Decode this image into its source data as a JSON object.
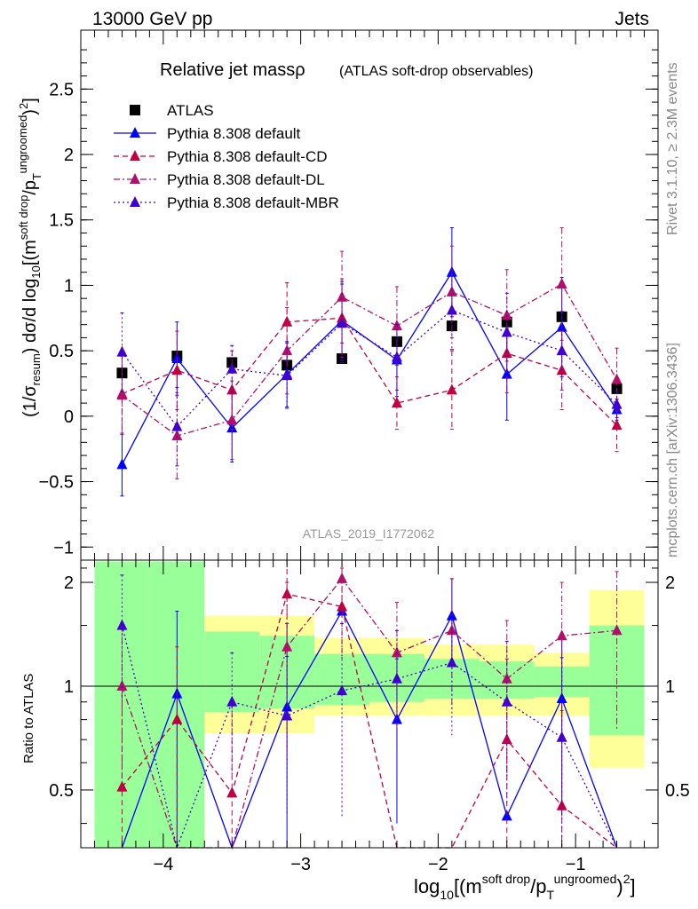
{
  "header": {
    "left": "13000 GeV pp",
    "right": "Jets"
  },
  "side": {
    "rivet": "Rivet 3.1.10, ≥ 2.3M events",
    "mcplots": "mcplots.cern.ch [arXiv:1306.3436]"
  },
  "chart_data": {
    "type": "line",
    "title_main": "Relative jet massρ",
    "title_sub": "(ATLAS soft-drop observables)",
    "watermark": "ATLAS_2019_I1772062",
    "xlabel": "log10[(m^soft drop/pT^ungroomed)^2]",
    "ylabel": "(1/σresum) dσ/d log10[(m^soft drop/pT^ungroomed)^2]",
    "ratio_ylabel": "Ratio to ATLAS",
    "xlim": [
      -4.6,
      -0.4
    ],
    "ylim": [
      -1.1,
      2.95
    ],
    "ratio_ylim": [
      0.34,
      2.32
    ],
    "x_ticks": [
      -4,
      -3,
      -2,
      -1
    ],
    "x_tick_labels": [
      "−4",
      "−3",
      "−2",
      "−1"
    ],
    "y_ticks": [
      -1,
      -0.5,
      0,
      0.5,
      1,
      1.5,
      2,
      2.5
    ],
    "y_tick_labels": [
      "−1",
      "−0.5",
      "0",
      "0.5",
      "1",
      "1.5",
      "2",
      "2.5"
    ],
    "ratio_ticks": [
      0.5,
      1,
      2
    ],
    "ratio_tick_labels": [
      "0.5",
      "1",
      "2"
    ],
    "bins": [
      -4.3,
      -3.9,
      -3.5,
      -3.1,
      -2.7,
      -2.3,
      -1.9,
      -1.5,
      -1.1,
      -0.7
    ],
    "bin_edges": [
      -4.5,
      -4.1,
      -3.7,
      -3.3,
      -2.9,
      -2.5,
      -2.1,
      -1.7,
      -1.3,
      -0.9,
      -0.5
    ],
    "band_yellow": [
      [
        0.3,
        2.3
      ],
      [
        0.3,
        2.1
      ],
      [
        0.73,
        1.6
      ],
      [
        0.73,
        1.6
      ],
      [
        0.82,
        1.38
      ],
      [
        0.82,
        1.38
      ],
      [
        0.82,
        1.32
      ],
      [
        0.82,
        1.32
      ],
      [
        0.82,
        1.25
      ],
      [
        0.58,
        1.9
      ]
    ],
    "band_green": [
      [
        0.3,
        2.3
      ],
      [
        0.3,
        2.3
      ],
      [
        0.84,
        1.44
      ],
      [
        0.86,
        1.4
      ],
      [
        0.88,
        1.24
      ],
      [
        0.9,
        1.24
      ],
      [
        0.92,
        1.2
      ],
      [
        0.92,
        1.18
      ],
      [
        0.93,
        1.14
      ],
      [
        0.72,
        1.5
      ]
    ],
    "series": [
      {
        "name": "ATLAS",
        "color": "#000000",
        "style": "marker-square",
        "values": [
          0.33,
          0.46,
          0.41,
          0.39,
          0.44,
          0.57,
          0.69,
          0.72,
          0.76,
          0.21
        ],
        "errors": [
          0.03,
          0.03,
          0.03,
          0.03,
          0.03,
          0.03,
          0.03,
          0.03,
          0.03,
          0.03
        ]
      },
      {
        "name": "Pythia 8.308 default",
        "color": "#0000ff",
        "dash": "",
        "values": [
          -0.37,
          0.44,
          -0.09,
          0.32,
          0.73,
          0.43,
          1.1,
          0.32,
          0.68,
          0.05
        ],
        "errors": [
          0.24,
          0.28,
          0.26,
          0.25,
          0.3,
          0.28,
          0.34,
          0.35,
          0.38,
          0.08
        ],
        "ratio": [
          0.2,
          0.95,
          0.2,
          0.87,
          1.65,
          0.8,
          1.6,
          0.42,
          0.92,
          0.25
        ],
        "ratio_errors": [
          0.0,
          0.7,
          0.0,
          0.65,
          0.0,
          0.4,
          0.45,
          0.0,
          0.5,
          0.0
        ]
      },
      {
        "name": "Pythia 8.308 default-CD",
        "color": "#c00040",
        "dash": "6,4",
        "values": [
          0.17,
          0.35,
          0.2,
          0.72,
          0.75,
          0.1,
          0.2,
          0.48,
          0.35,
          -0.07
        ],
        "errors": [
          0.3,
          0.3,
          0.3,
          0.3,
          0.3,
          0.2,
          0.3,
          0.3,
          0.3,
          0.2
        ],
        "ratio": [
          0.51,
          0.8,
          0.49,
          1.85,
          1.7,
          0.2,
          0.28,
          0.7,
          0.45,
          0.2
        ],
        "ratio_errors": [
          0.5,
          0.5,
          0.4,
          0.6,
          0.5,
          0.0,
          0.0,
          0.5,
          0.4,
          0.0
        ]
      },
      {
        "name": "Pythia 8.308 default-DL",
        "color": "#b0106a",
        "dash": "7,3,2,3",
        "values": [
          0.16,
          -0.15,
          -0.03,
          0.5,
          0.91,
          0.69,
          0.95,
          0.77,
          1.01,
          0.28
        ],
        "errors": [
          0.3,
          0.33,
          0.3,
          0.33,
          0.35,
          0.3,
          0.35,
          0.35,
          0.43,
          0.24
        ],
        "ratio": [
          1.0,
          0.25,
          0.2,
          1.3,
          2.05,
          1.25,
          1.45,
          1.05,
          1.4,
          1.45
        ],
        "ratio_errors": [
          0.5,
          0.0,
          0.0,
          0.7,
          0.3,
          0.5,
          0.6,
          0.5,
          0.6,
          0.7
        ]
      },
      {
        "name": "Pythia 8.308 default-MBR",
        "color": "#4000d0",
        "dash": "2,3",
        "values": [
          0.49,
          -0.08,
          0.36,
          0.31,
          0.71,
          0.45,
          0.81,
          0.64,
          0.5,
          0.09
        ],
        "errors": [
          0.3,
          0.3,
          0.18,
          0.25,
          0.3,
          0.25,
          0.3,
          0.3,
          0.3,
          0.1
        ],
        "ratio": [
          1.5,
          0.2,
          0.9,
          0.82,
          0.97,
          1.05,
          1.17,
          0.9,
          0.71,
          0.3
        ],
        "ratio_errors": [
          0.6,
          0.0,
          0.35,
          0.4,
          0.55,
          0.4,
          0.45,
          0.45,
          0.5,
          0.0
        ]
      }
    ]
  }
}
